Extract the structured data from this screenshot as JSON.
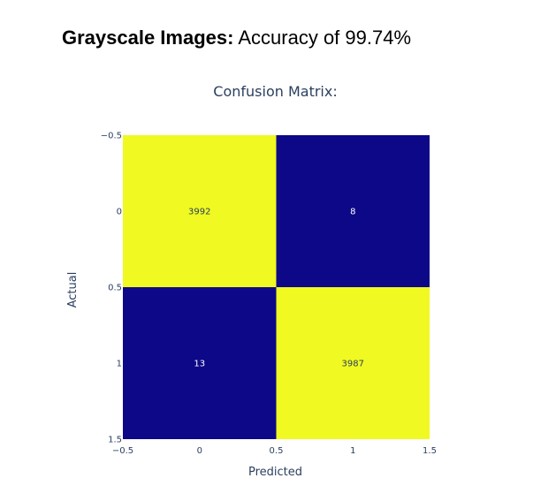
{
  "headline": {
    "bold": "Grayscale Images:",
    "rest": " Accuracy of 99.74%"
  },
  "chart_data": {
    "type": "heatmap",
    "title": "Confusion Matrix:",
    "xlabel": "Predicted",
    "ylabel": "Actual",
    "x_categories": [
      "0",
      "1"
    ],
    "y_categories": [
      "0",
      "1"
    ],
    "values": [
      [
        3992,
        8
      ],
      [
        13,
        3987
      ]
    ],
    "xlim": [
      -0.5,
      1.5
    ],
    "ylim": [
      -0.5,
      1.5
    ],
    "x_ticks": [
      "−0.5",
      "0",
      "0.5",
      "1",
      "1.5"
    ],
    "y_ticks": [
      "−0.5",
      "0",
      "0.5",
      "1",
      "1.5"
    ],
    "colorscale": {
      "low": "#0d0887",
      "high": "#f0f921"
    },
    "label_colors": {
      "on_dark": "#ffffff",
      "on_light": "#2a3f5f"
    }
  }
}
